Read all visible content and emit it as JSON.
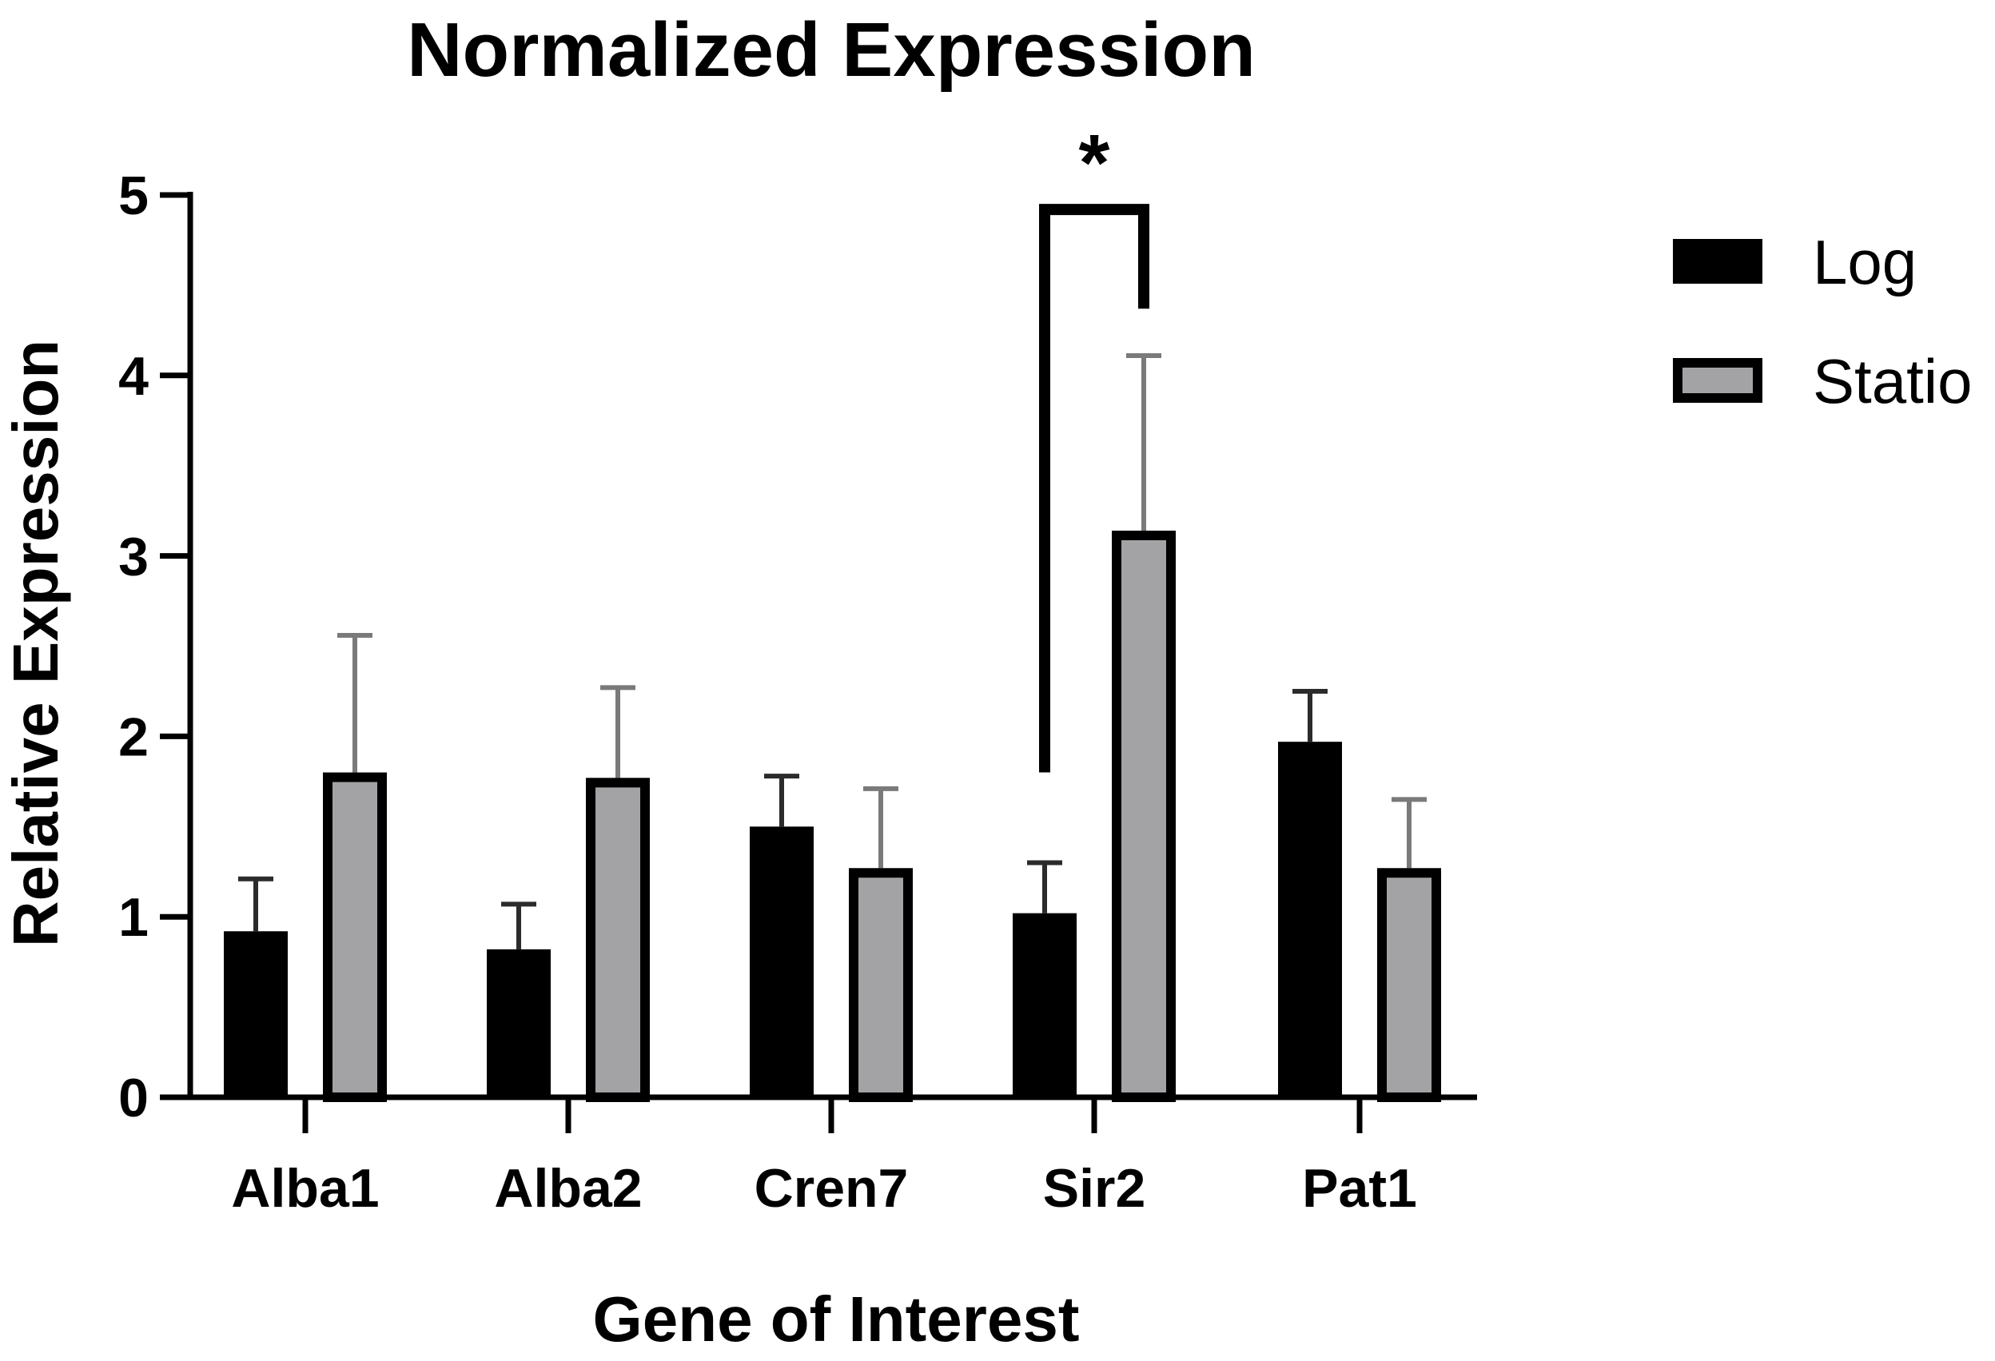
{
  "chart_data": {
    "type": "bar",
    "title": "Normalized Expression",
    "xlabel": "Gene of Interest",
    "ylabel": "Relative Expression",
    "ylim": [
      0,
      5
    ],
    "yticks": [
      "0",
      "1",
      "2",
      "3",
      "4",
      "5"
    ],
    "categories": [
      "Alba1",
      "Alba2",
      "Cren7",
      "Sir2",
      "Pat1"
    ],
    "series": [
      {
        "name": "Log",
        "color": "#000000",
        "values": [
          0.92,
          0.82,
          1.5,
          1.02,
          1.97
        ],
        "errors": [
          0.29,
          0.25,
          0.28,
          0.28,
          0.28
        ]
      },
      {
        "name": "Statio",
        "color": "#a3a3a6",
        "values": [
          1.8,
          1.77,
          1.27,
          3.14,
          1.27
        ],
        "errors": [
          0.76,
          0.5,
          0.44,
          0.97,
          0.38
        ]
      }
    ],
    "significance": {
      "category": "Sir2",
      "label": "*"
    },
    "legend_position": "top-right",
    "grid": false
  }
}
